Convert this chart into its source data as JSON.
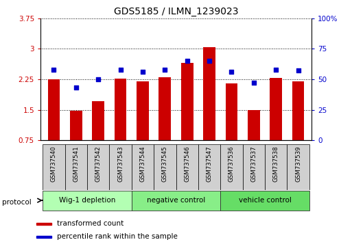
{
  "title": "GDS5185 / ILMN_1239023",
  "samples": [
    "GSM737540",
    "GSM737541",
    "GSM737542",
    "GSM737543",
    "GSM737544",
    "GSM737545",
    "GSM737546",
    "GSM737547",
    "GSM737536",
    "GSM737537",
    "GSM737538",
    "GSM737539"
  ],
  "red_values": [
    2.25,
    1.47,
    1.72,
    2.27,
    2.2,
    2.3,
    2.65,
    3.03,
    2.15,
    1.5,
    2.28,
    2.2
  ],
  "blue_values": [
    58,
    43,
    50,
    58,
    56,
    58,
    65,
    65,
    56,
    47,
    58,
    57
  ],
  "groups": [
    {
      "label": "Wig-1 depletion",
      "start": 0,
      "end": 3,
      "color": "#b3ffb3"
    },
    {
      "label": "negative control",
      "start": 4,
      "end": 7,
      "color": "#88ee88"
    },
    {
      "label": "vehicle control",
      "start": 8,
      "end": 11,
      "color": "#66dd66"
    }
  ],
  "ylim_left": [
    0.75,
    3.75
  ],
  "ylim_right": [
    0,
    100
  ],
  "yticks_left": [
    0.75,
    1.5,
    2.25,
    3.0,
    3.75
  ],
  "yticks_right": [
    0,
    25,
    50,
    75,
    100
  ],
  "ytick_labels_left": [
    "0.75",
    "1.5",
    "2.25",
    "3",
    "3.75"
  ],
  "ytick_labels_right": [
    "0",
    "25",
    "50",
    "75",
    "100%"
  ],
  "bar_color": "#cc0000",
  "dot_color": "#0000cc",
  "bar_width": 0.55,
  "dot_size": 22,
  "left_tick_color": "#cc0000",
  "right_tick_color": "#0000cc",
  "legend_red_label": "transformed count",
  "legend_blue_label": "percentile rank within the sample",
  "protocol_label": "protocol"
}
